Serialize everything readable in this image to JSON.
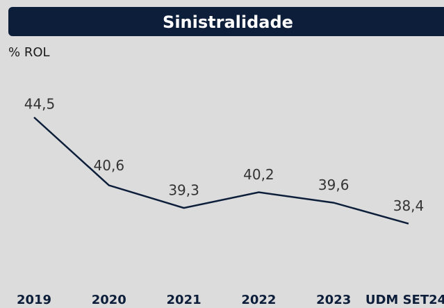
{
  "chart_data": {
    "type": "line",
    "title": "Sinistralidade",
    "y_label": "% ROL",
    "categories": [
      "2019",
      "2020",
      "2021",
      "2022",
      "2023",
      "UDM SET24"
    ],
    "series": [
      {
        "name": "Sinistralidade",
        "color": "#0d1e3a",
        "values": [
          44.5,
          40.6,
          39.3,
          40.2,
          39.6,
          38.4
        ],
        "value_labels": [
          "44,5",
          "40,6",
          "39,3",
          "40,2",
          "39,6",
          "38,4"
        ]
      }
    ],
    "ylim": [
      34,
      48
    ]
  }
}
